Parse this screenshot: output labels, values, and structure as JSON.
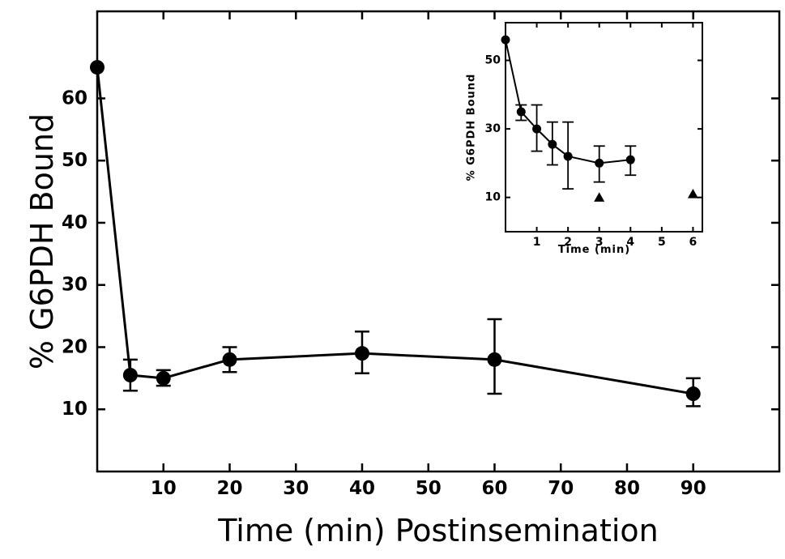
{
  "chart_data": [
    {
      "id": "main",
      "type": "line",
      "xlabel": "Time (min) Postinsemination",
      "ylabel": "% G6PDH Bound",
      "xlim": [
        0,
        103
      ],
      "ylim": [
        0,
        74
      ],
      "x_ticks": [
        10,
        20,
        30,
        40,
        50,
        60,
        70,
        80,
        90
      ],
      "y_ticks": [
        10,
        20,
        30,
        40,
        50,
        60
      ],
      "grid": false,
      "series": [
        {
          "marker": "circle",
          "x": [
            0,
            5,
            10,
            20,
            40,
            60,
            90
          ],
          "y": [
            65,
            15.5,
            15,
            18,
            19,
            18,
            12.5
          ],
          "err_low": [
            65,
            13,
            13.8,
            16,
            15.8,
            12.5,
            10.5
          ],
          "err_high": [
            65,
            18,
            16.3,
            20,
            22.5,
            24.5,
            15
          ]
        }
      ]
    },
    {
      "id": "inset",
      "type": "line",
      "xlabel": "Time (min)",
      "ylabel": "% G6PDH Bound",
      "xlim": [
        0,
        6.3
      ],
      "ylim": [
        0,
        61
      ],
      "x_ticks": [
        1,
        2,
        3,
        4,
        5,
        6
      ],
      "y_ticks": [
        10,
        30,
        50
      ],
      "grid": false,
      "series": [
        {
          "marker": "circle",
          "x": [
            0,
            0.5,
            1,
            1.5,
            2,
            3,
            4
          ],
          "y": [
            56,
            35,
            30,
            25.5,
            22,
            20,
            21
          ],
          "err_low": [
            56,
            32.5,
            23.5,
            19.5,
            12.5,
            14.5,
            16.5
          ],
          "err_high": [
            56,
            37,
            37,
            32,
            32,
            25,
            25
          ]
        },
        {
          "marker": "triangle",
          "x": [
            3,
            6
          ],
          "y": [
            10,
            11
          ]
        }
      ]
    }
  ]
}
